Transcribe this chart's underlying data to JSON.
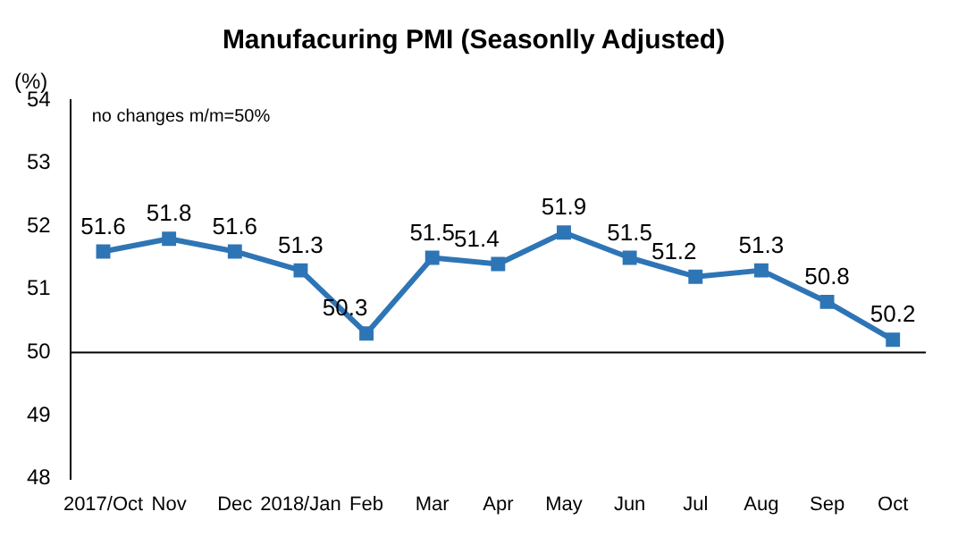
{
  "chart_data": {
    "type": "line",
    "title": "Manufacuring PMI (Seasonlly Adjusted)",
    "ylabel": "(%)",
    "annotations": [
      "no changes m/m=50%"
    ],
    "categories": [
      "2017/Oct",
      "Nov",
      "Dec",
      "2018/Jan",
      "Feb",
      "Mar",
      "Apr",
      "May",
      "Jun",
      "Jul",
      "Aug",
      "Sep",
      "Oct"
    ],
    "series": [
      {
        "color": "#2e75b6",
        "values": [
          51.6,
          51.8,
          51.6,
          51.3,
          50.3,
          51.5,
          51.4,
          51.9,
          51.5,
          51.2,
          51.3,
          50.8,
          50.2
        ]
      }
    ],
    "ylim": [
      48,
      54
    ],
    "yticks": [
      48,
      49,
      50,
      51,
      52,
      53,
      54
    ],
    "ref_lines": [
      {
        "axis": "y",
        "value": 50,
        "color": "#000000"
      }
    ],
    "data_labels": true,
    "marker": "square",
    "line_style": "solid",
    "grid": false,
    "legend": false
  }
}
